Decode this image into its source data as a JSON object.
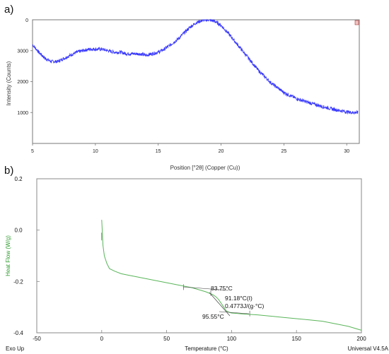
{
  "panels": {
    "a_label": "a)",
    "b_label": "b)"
  },
  "chart_data": [
    {
      "type": "line",
      "xlabel": "Position [°2θ] (Copper (Cu))",
      "ylabel": "Intensity (Counts)",
      "xlim": [
        5,
        31
      ],
      "ylim": [
        0,
        4000
      ],
      "x_ticks": [
        5,
        10,
        15,
        20,
        25,
        30
      ],
      "y_ticks": [
        1000,
        2000,
        3000
      ],
      "y_top_label": "0",
      "grid": false,
      "line_color": "#3a3aff",
      "series": [
        {
          "x": [
            5,
            5.5,
            6,
            6.5,
            7,
            7.5,
            8,
            8.5,
            9,
            9.5,
            10,
            10.5,
            11,
            11.5,
            12,
            12.5,
            13,
            13.5,
            14,
            14.5,
            15,
            15.5,
            16,
            16.5,
            17,
            17.5,
            18,
            18.5,
            19,
            19.5,
            20,
            20.5,
            21,
            21.5,
            22,
            22.5,
            23,
            23.5,
            24,
            24.5,
            25,
            25.5,
            26,
            26.5,
            27,
            27.5,
            28,
            28.5,
            29,
            29.5,
            30,
            30.5,
            30.9
          ],
          "values": [
            3200,
            2950,
            2750,
            2650,
            2650,
            2750,
            2850,
            2950,
            3000,
            3050,
            3050,
            3050,
            3000,
            2950,
            2950,
            2900,
            2900,
            2900,
            2850,
            2900,
            2950,
            3050,
            3200,
            3350,
            3550,
            3750,
            3900,
            3980,
            4000,
            3950,
            3820,
            3600,
            3350,
            3100,
            2850,
            2600,
            2350,
            2150,
            1950,
            1800,
            1650,
            1550,
            1450,
            1380,
            1320,
            1260,
            1200,
            1150,
            1100,
            1060,
            1020,
            1000,
            1000
          ]
        }
      ]
    },
    {
      "type": "line",
      "xlabel": "Temperature (°C)",
      "ylabel": "Heat Flow (W/g)",
      "xlim": [
        -50,
        200
      ],
      "ylim": [
        -0.4,
        0.2
      ],
      "x_ticks": [
        -50,
        0,
        50,
        100,
        150,
        200
      ],
      "y_ticks": [
        0.2,
        0.0,
        -0.2,
        -0.4
      ],
      "y_tick_labels": [
        "0.2",
        "0.0",
        "-0.2",
        "-0.4"
      ],
      "grid": false,
      "line_color": "#5ab55a",
      "footer_left": "Exo Up",
      "footer_right": "Universal V4.5A",
      "series": [
        {
          "x": [
            0,
            0.5,
            1,
            2,
            4,
            6,
            10,
            15,
            20,
            30,
            40,
            50,
            60,
            70,
            80,
            85,
            88,
            90,
            92,
            94,
            96,
            98,
            100,
            110,
            120,
            130,
            140,
            150,
            160,
            170,
            180,
            190,
            200
          ],
          "values": [
            0.04,
            -0.01,
            -0.06,
            -0.1,
            -0.13,
            -0.15,
            -0.16,
            -0.17,
            -0.175,
            -0.185,
            -0.195,
            -0.205,
            -0.215,
            -0.225,
            -0.24,
            -0.25,
            -0.26,
            -0.27,
            -0.285,
            -0.3,
            -0.315,
            -0.32,
            -0.323,
            -0.327,
            -0.33,
            -0.335,
            -0.34,
            -0.345,
            -0.35,
            -0.355,
            -0.365,
            -0.375,
            -0.39
          ]
        }
      ],
      "annotations": [
        {
          "text": "83.75°C",
          "x": 85,
          "y": -0.24
        },
        {
          "text": "91.18°C(I)",
          "x": 91.18,
          "y": -0.28
        },
        {
          "text": "0.4773J/(g·°C)",
          "x": 92,
          "y": -0.3
        },
        {
          "text": "95.55°C",
          "x": 95.55,
          "y": -0.32
        }
      ]
    }
  ]
}
